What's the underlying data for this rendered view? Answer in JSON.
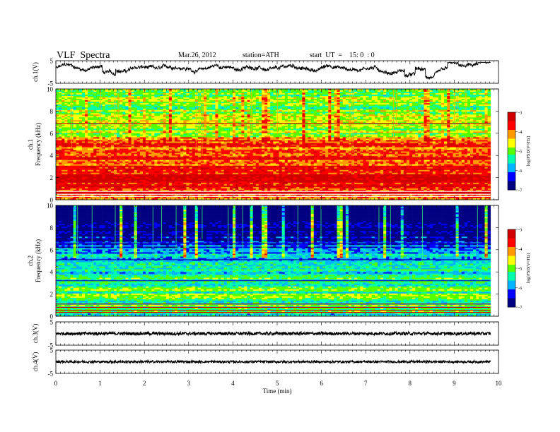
{
  "header": {
    "title": "VLF  Spectra",
    "date": "Mar.26, 2012",
    "station": "station=ATH",
    "start": "start  UT  =    15: 0  : 0"
  },
  "chart_data": [
    {
      "type": "line",
      "panel": "ch1-waveform",
      "ylabel": "ch.1(V)",
      "yticks": [
        "5",
        "-5"
      ],
      "ylim": [
        -5,
        5
      ],
      "xlim": [
        0,
        10
      ],
      "x_extent": [
        0,
        9.82
      ],
      "baseline": 1.5,
      "description_of_trace": "continuous noisy waveform"
    },
    {
      "type": "heatmap",
      "panel": "ch1-spectrogram",
      "ylabel": "ch.1\nFrequency  (kHz)",
      "ylabel_line1": "ch.1",
      "ylabel_line2": "Frequency  (kHz)",
      "yticks": [
        "0",
        "2",
        "4",
        "6",
        "8",
        "10"
      ],
      "ylim": [
        0,
        10
      ],
      "xlim": [
        0,
        10
      ],
      "colorbar": {
        "label": "log(PSD(V²/Hz)",
        "ticks": [
          "-3",
          "-4",
          "-5",
          "-6",
          "-7"
        ],
        "range": [
          -7,
          -3
        ]
      },
      "level_profile": [
        [
          0,
          -4.0
        ],
        [
          0.5,
          -3.6
        ],
        [
          1,
          -3.5
        ],
        [
          2,
          -3.6
        ],
        [
          3,
          -3.7
        ],
        [
          4,
          -3.9
        ],
        [
          4.7,
          -4.0
        ],
        [
          5,
          -3.6
        ],
        [
          5.5,
          -4.4
        ],
        [
          6,
          -4.9
        ],
        [
          7,
          -4.8
        ],
        [
          8,
          -4.9
        ],
        [
          9,
          -5.0
        ],
        [
          10,
          -5.1
        ]
      ]
    },
    {
      "type": "heatmap",
      "panel": "ch2-spectrogram",
      "ylabel_line1": "ch.2",
      "ylabel_line2": "Frequency  (kHz)",
      "yticks": [
        "0",
        "2",
        "4",
        "6",
        "8",
        "10"
      ],
      "ylim": [
        0,
        10
      ],
      "xlim": [
        0,
        10
      ],
      "colorbar": {
        "label": "log(PSD(V²/Hz)",
        "ticks": [
          "-3",
          "-4",
          "-5",
          "-6",
          "-7"
        ],
        "range": [
          -7,
          -3
        ]
      },
      "level_profile": [
        [
          0,
          -5.6
        ],
        [
          0.5,
          -5.3
        ],
        [
          1,
          -5.1
        ],
        [
          2,
          -5.2
        ],
        [
          3,
          -5.3
        ],
        [
          4,
          -5.6
        ],
        [
          4.5,
          -5.7
        ],
        [
          5,
          -5.8
        ],
        [
          6,
          -6.1
        ],
        [
          7,
          -6.3
        ],
        [
          8,
          -6.5
        ],
        [
          9,
          -6.7
        ],
        [
          10,
          -6.8
        ]
      ]
    },
    {
      "type": "line",
      "panel": "ch3-waveform",
      "ylabel": "ch.3(V)",
      "yticks": [
        "5",
        "-5"
      ],
      "ylim": [
        -5,
        5
      ],
      "baseline": 0,
      "xlim": [
        0,
        10
      ],
      "x_extent": [
        0,
        9.82
      ]
    },
    {
      "type": "line",
      "panel": "ch4-waveform",
      "ylabel": "ch.4(V)",
      "yticks": [
        "5",
        "-5"
      ],
      "ylim": [
        -5,
        5
      ],
      "baseline": 0,
      "xlim": [
        0,
        10
      ],
      "x_extent": [
        0,
        9.82
      ]
    }
  ],
  "x_axis": {
    "label": "Time  (min)",
    "ticks": [
      "0",
      "1",
      "2",
      "3",
      "4",
      "5",
      "6",
      "7",
      "8",
      "9",
      "10"
    ],
    "range": [
      0,
      10
    ]
  },
  "colors": {
    "scale": [
      "#000080",
      "#0000ff",
      "#00b4ff",
      "#00ffaa",
      "#55ff00",
      "#ffff00",
      "#ff9900",
      "#ff0000",
      "#d00000"
    ]
  }
}
